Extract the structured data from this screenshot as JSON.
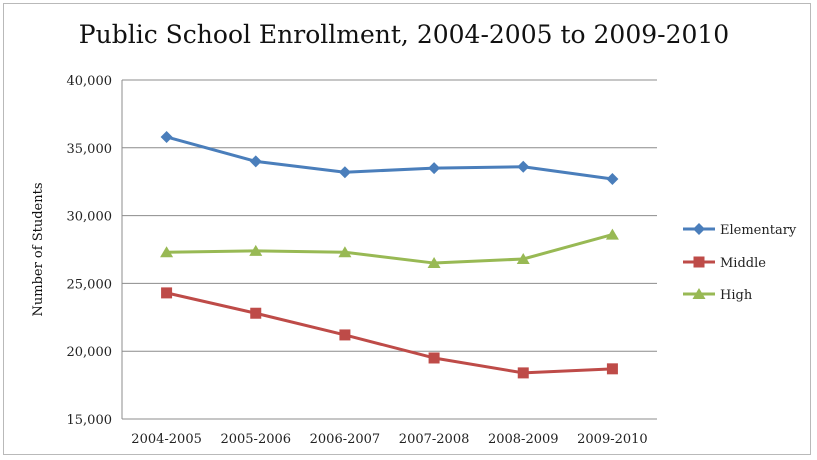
{
  "chart_data": {
    "type": "line",
    "title": "Public School Enrollment, 2004-2005 to 2009-2010",
    "xlabel": "",
    "ylabel": "Number of Students",
    "categories": [
      "2004-2005",
      "2005-2006",
      "2006-2007",
      "2007-2008",
      "2008-2009",
      "2009-2010"
    ],
    "ylim": [
      15000,
      40000
    ],
    "yticks": [
      15000,
      20000,
      25000,
      30000,
      35000,
      40000
    ],
    "ytick_labels": [
      "15,000",
      "20,000",
      "25,000",
      "30,000",
      "35,000",
      "40,000"
    ],
    "grid": true,
    "legend_position": "right",
    "series": [
      {
        "name": "Elementary",
        "color": "#4a7ebb",
        "marker": "diamond",
        "values": [
          35800,
          34000,
          33200,
          33500,
          33600,
          32700
        ]
      },
      {
        "name": "Middle",
        "color": "#be4b48",
        "marker": "square",
        "values": [
          24300,
          22800,
          21200,
          19500,
          18400,
          18700
        ]
      },
      {
        "name": "High",
        "color": "#98b954",
        "marker": "triangle",
        "values": [
          27300,
          27400,
          27300,
          26500,
          26800,
          28600
        ]
      }
    ]
  }
}
